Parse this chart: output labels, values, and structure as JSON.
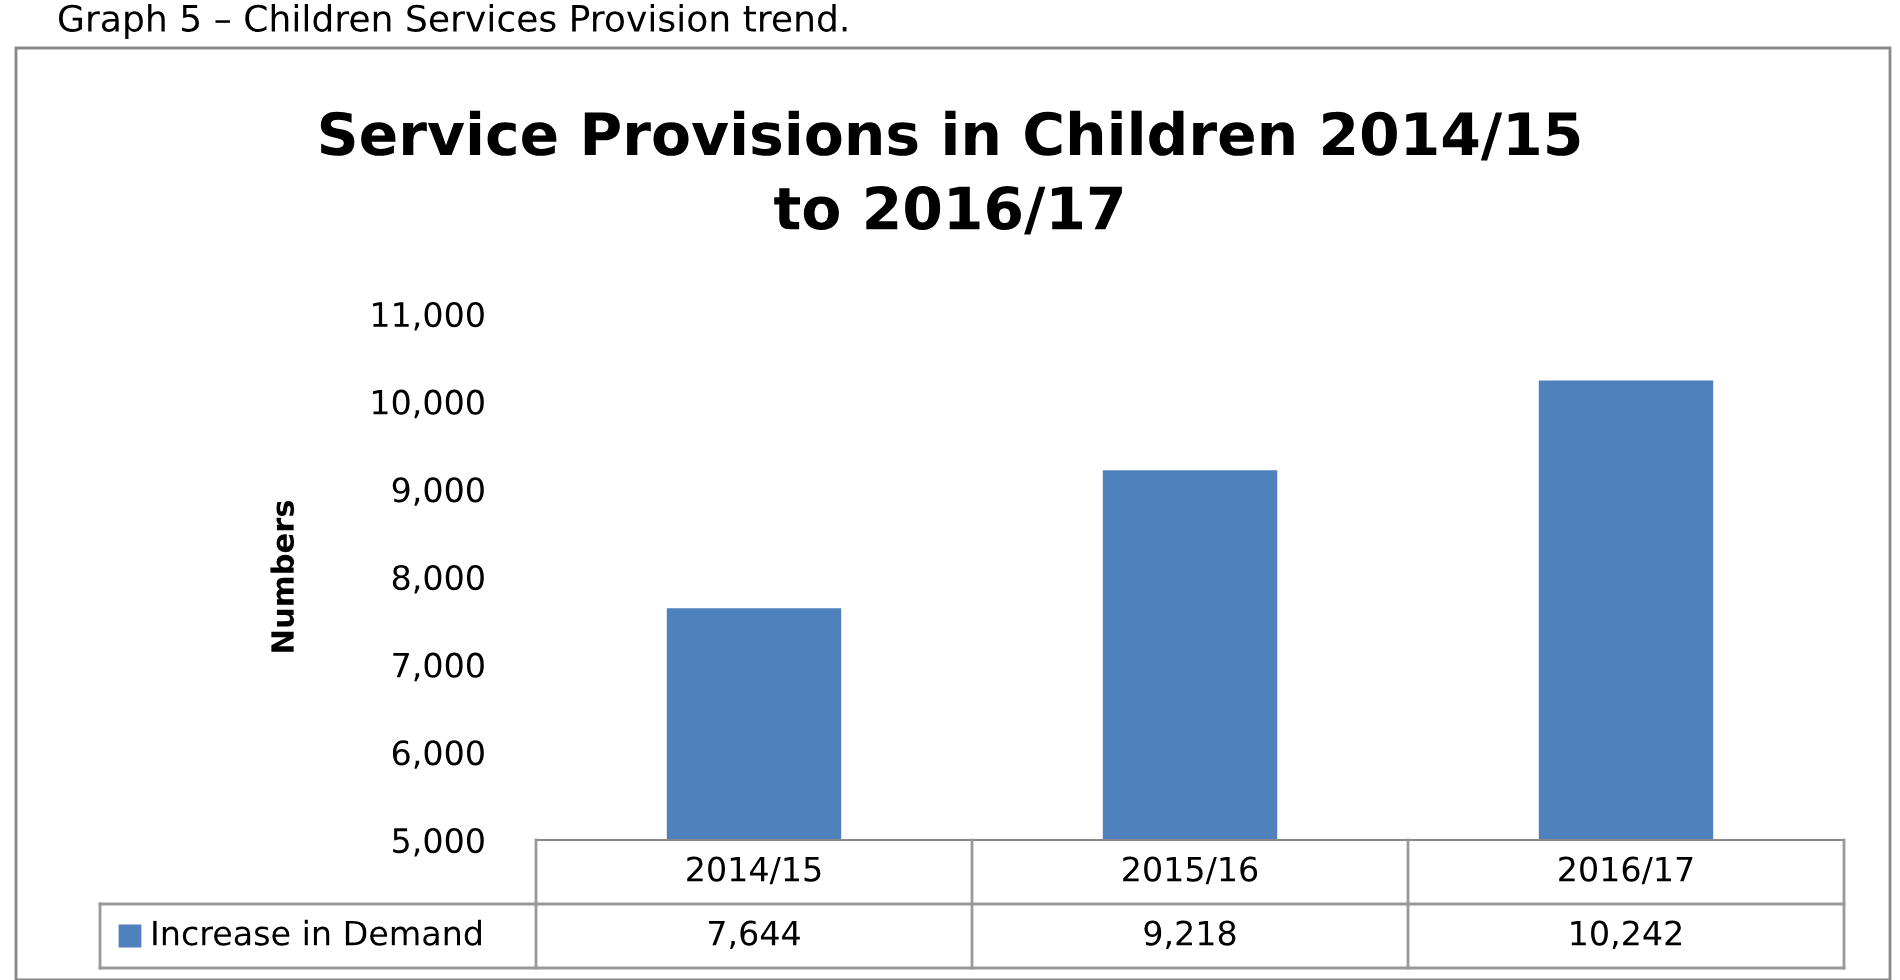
{
  "chart_data": {
    "type": "bar",
    "title": "Service Provisions in Children 2014/15\nto 2016/17",
    "ylabel": "Numbers",
    "annotations": [
      "Graph 5 – Children Services Provision trend."
    ],
    "categories": [
      "2014/15",
      "2015/16",
      "2016/17"
    ],
    "series": [
      {
        "name": "Increase in Demand",
        "color": "#4f81bd",
        "values": [
          7644,
          9218,
          10242
        ]
      }
    ],
    "ylim": [
      5000,
      11000
    ],
    "yticks": [
      {
        "value": 5000,
        "label": "5,000"
      },
      {
        "value": 6000,
        "label": "6,000"
      },
      {
        "value": 7000,
        "label": "7,000"
      },
      {
        "value": 8000,
        "label": "8,000"
      },
      {
        "value": 9000,
        "label": "9,000"
      },
      {
        "value": 10000,
        "label": "10,000"
      },
      {
        "value": 11000,
        "label": "11,000"
      }
    ],
    "value_labels": [
      "7,644",
      "9,218",
      "10,242"
    ],
    "legend": "bottom",
    "grid": false
  }
}
